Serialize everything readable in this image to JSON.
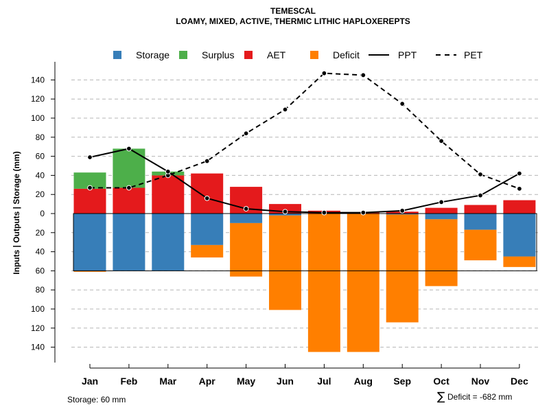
{
  "chart_data": {
    "type": "bar",
    "title": "TEMESCAL",
    "subtitle": "LOAMY, MIXED, ACTIVE, THERMIC LITHIC HAPLOXEREPTS",
    "ylabel": "Inputs | Outputs | Storage    (mm)",
    "categories": [
      "Jan",
      "Feb",
      "Mar",
      "Apr",
      "May",
      "Jun",
      "Jul",
      "Aug",
      "Sep",
      "Oct",
      "Nov",
      "Dec"
    ],
    "ylim": [
      -150,
      150
    ],
    "yticks": [
      140,
      120,
      100,
      80,
      60,
      40,
      20,
      0,
      -20,
      -40,
      -60,
      -80,
      -100,
      -120,
      -140
    ],
    "ytick_labels": [
      "140",
      "120",
      "100",
      "80",
      "60",
      "40",
      "20",
      "0",
      "20",
      "40",
      "60",
      "80",
      "100",
      "120",
      "140"
    ],
    "grid": true,
    "storage_capacity": 60,
    "series": [
      {
        "name": "Storage",
        "color": "#377EB8",
        "values": [
          -60,
          -60,
          -60,
          -33,
          -10,
          -2,
          0,
          0,
          -1,
          -6,
          -17,
          -45
        ]
      },
      {
        "name": "Surplus",
        "color": "#4DAF4A",
        "values": [
          17,
          41,
          4,
          0,
          0,
          0,
          0,
          0,
          0,
          0,
          0,
          0
        ]
      },
      {
        "name": "AET",
        "color": "#E41A1C",
        "values": [
          26,
          27,
          40,
          42,
          28,
          10,
          3,
          1,
          2,
          6,
          9,
          14
        ]
      },
      {
        "name": "Deficit",
        "color": "#FF7F00",
        "values": [
          -1,
          0,
          0,
          -13,
          -56,
          -99,
          -145,
          -145,
          -113,
          -70,
          -32,
          -11
        ]
      },
      {
        "name": "PPT",
        "style": "solid",
        "values": [
          59,
          68,
          44,
          16,
          5,
          2,
          1,
          1,
          3,
          12,
          19,
          42
        ]
      },
      {
        "name": "PET",
        "style": "dashed",
        "values": [
          27,
          27,
          40,
          55,
          84,
          109,
          147,
          145,
          115,
          76,
          41,
          26
        ]
      }
    ],
    "legend": {
      "position": "top",
      "entries": [
        "Storage",
        "Surplus",
        "AET",
        "Deficit",
        "PPT",
        "PET"
      ]
    },
    "annotations": {
      "storage_note": "Storage: 60 mm",
      "deficit_symbol": "∑",
      "deficit_note": "Deficit = -682 mm"
    }
  }
}
